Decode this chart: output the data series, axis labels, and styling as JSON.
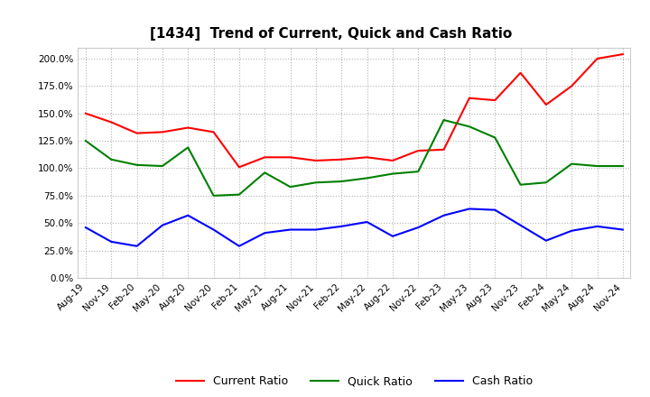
{
  "title": "[1434]  Trend of Current, Quick and Cash Ratio",
  "x_labels": [
    "Aug-19",
    "Nov-19",
    "Feb-20",
    "May-20",
    "Aug-20",
    "Nov-20",
    "Feb-21",
    "May-21",
    "Aug-21",
    "Nov-21",
    "Feb-22",
    "May-22",
    "Aug-22",
    "Nov-22",
    "Feb-23",
    "May-23",
    "Aug-23",
    "Nov-23",
    "Feb-24",
    "May-24",
    "Aug-24",
    "Nov-24"
  ],
  "current_ratio": [
    1.5,
    1.42,
    1.32,
    1.33,
    1.37,
    1.33,
    1.01,
    1.1,
    1.1,
    1.07,
    1.08,
    1.1,
    1.07,
    1.16,
    1.17,
    1.64,
    1.62,
    1.87,
    1.58,
    1.75,
    2.0,
    2.04
  ],
  "quick_ratio": [
    1.25,
    1.08,
    1.03,
    1.02,
    1.19,
    0.75,
    0.76,
    0.96,
    0.83,
    0.87,
    0.88,
    0.91,
    0.95,
    0.97,
    1.44,
    1.38,
    1.28,
    0.85,
    0.87,
    1.04,
    1.02,
    1.02
  ],
  "cash_ratio": [
    0.46,
    0.33,
    0.29,
    0.48,
    0.57,
    0.44,
    0.29,
    0.41,
    0.44,
    0.44,
    0.47,
    0.51,
    0.38,
    0.46,
    0.57,
    0.63,
    0.62,
    0.48,
    0.34,
    0.43,
    0.47,
    0.44
  ],
  "current_color": "#ff0000",
  "quick_color": "#008000",
  "cash_color": "#0000ff",
  "ylim": [
    0.0,
    2.1
  ],
  "yticks": [
    0.0,
    0.25,
    0.5,
    0.75,
    1.0,
    1.25,
    1.5,
    1.75,
    2.0
  ],
  "background_color": "#ffffff",
  "plot_bg_color": "#ffffff",
  "grid_color": "#aaaaaa",
  "legend_labels": [
    "Current Ratio",
    "Quick Ratio",
    "Cash Ratio"
  ],
  "title_fontsize": 11,
  "tick_fontsize": 7.5,
  "legend_fontsize": 9
}
